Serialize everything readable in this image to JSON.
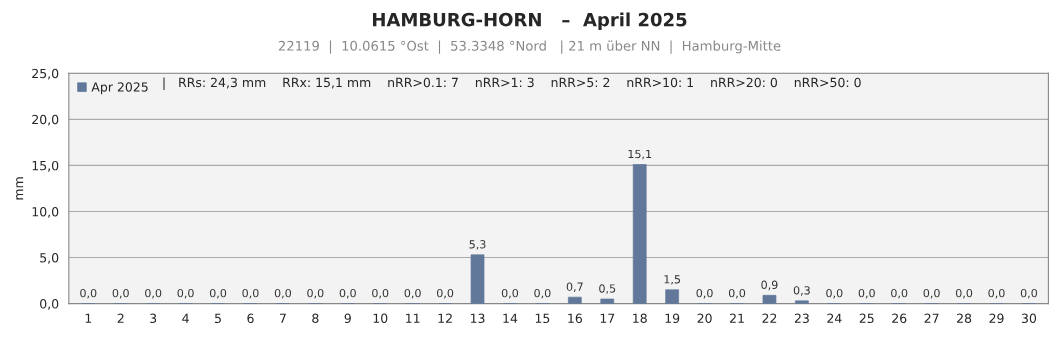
{
  "chart_data": {
    "type": "bar",
    "title": "HAMBURG-HORN   –  April 2025",
    "subtitle": "22119  |  10.0615 °Ost  |  53.3348 °Nord   | 21 m über NN  |  Hamburg-Mitte",
    "ylabel": "mm",
    "categories": [
      "1",
      "2",
      "3",
      "4",
      "5",
      "6",
      "7",
      "8",
      "9",
      "10",
      "11",
      "12",
      "13",
      "14",
      "15",
      "16",
      "17",
      "18",
      "19",
      "20",
      "21",
      "22",
      "23",
      "24",
      "25",
      "26",
      "27",
      "28",
      "29",
      "30"
    ],
    "series": [
      {
        "name": "Apr 2025",
        "color": "#61789a",
        "values": [
          0,
          0,
          0,
          0,
          0,
          0,
          0,
          0,
          0,
          0,
          0,
          0,
          5.3,
          0,
          0,
          0.7,
          0.5,
          15.1,
          1.5,
          0,
          0,
          0.9,
          0.3,
          0,
          0,
          0,
          0,
          0,
          0,
          0
        ],
        "value_labels": [
          "0,0",
          "0,0",
          "0,0",
          "0,0",
          "0,0",
          "0,0",
          "0,0",
          "0,0",
          "0,0",
          "0,0",
          "0,0",
          "0,0",
          "5,3",
          "0,0",
          "0,0",
          "0,7",
          "0,5",
          "15,1",
          "1,5",
          "0,0",
          "0,0",
          "0,9",
          "0,3",
          "0,0",
          "0,0",
          "0,0",
          "0,0",
          "0,0",
          "0,0",
          "0,0"
        ]
      }
    ],
    "ylim": [
      0,
      25
    ],
    "yticks": [
      {
        "value": 0,
        "label": "0,0"
      },
      {
        "value": 5,
        "label": "5,0"
      },
      {
        "value": 10,
        "label": "10,0"
      },
      {
        "value": 15,
        "label": "15,0"
      },
      {
        "value": 20,
        "label": "20,0"
      },
      {
        "value": 25,
        "label": "25,0"
      }
    ],
    "grid": "y",
    "legend": "top left",
    "annotations": [
      "|   RRs: 24,3 mm    RRx: 15,1 mm    nRR>0.1: 7    nRR>1: 3    nRR>5: 2    nRR>10: 1    nRR>20: 0    nRR>50: 0"
    ]
  }
}
